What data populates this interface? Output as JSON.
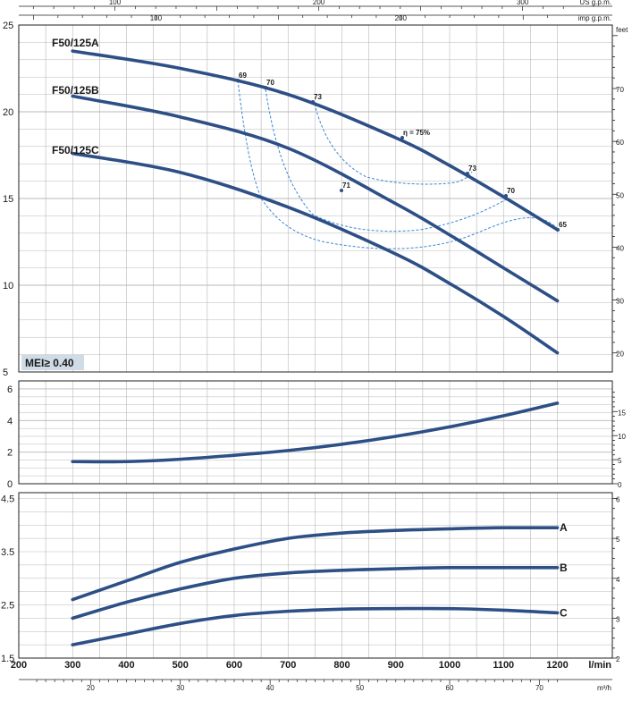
{
  "chart_data": [
    {
      "type": "line",
      "panel": "head",
      "ylim": [
        5,
        25
      ],
      "yticks": [
        "5",
        "10",
        "15",
        "20",
        "25"
      ],
      "right_axis": {
        "unit": "feet",
        "range": [
          16.4,
          82.0
        ],
        "ticks": [
          "20",
          "30",
          "40",
          "50",
          "60",
          "70"
        ]
      },
      "series": [
        {
          "name": "F50/125A",
          "x": [
            300,
            500,
            700,
            900,
            1000,
            1100,
            1200
          ],
          "values": [
            23.5,
            22.5,
            21.0,
            18.5,
            16.9,
            15.1,
            13.2
          ]
        },
        {
          "name": "F50/125B",
          "x": [
            300,
            500,
            700,
            900,
            1000,
            1100,
            1200
          ],
          "values": [
            20.9,
            19.7,
            17.9,
            14.7,
            12.9,
            11.0,
            9.1
          ]
        },
        {
          "name": "F50/125C",
          "x": [
            300,
            500,
            700,
            900,
            1000,
            1100,
            1200
          ],
          "values": [
            17.6,
            16.5,
            14.5,
            11.8,
            10.1,
            8.2,
            6.1
          ]
        }
      ],
      "efficiency_labels": [
        "69",
        "70",
        "73",
        "η = 75%",
        "73",
        "70",
        "65",
        "71"
      ],
      "mei_label": "MEI≥ 0.40"
    },
    {
      "type": "line",
      "panel": "npsh",
      "ylim": [
        0,
        6
      ],
      "yticks": [
        "0",
        "2",
        "4",
        "6"
      ],
      "right_axis": {
        "unit": "feet",
        "range": [
          0,
          19.7
        ],
        "ticks": [
          "0",
          "5",
          "10",
          "15"
        ]
      },
      "series": [
        {
          "x": [
            300,
            400,
            500,
            600,
            700,
            800,
            900,
            1000,
            1100,
            1200
          ],
          "values": [
            1.4,
            1.4,
            1.55,
            1.8,
            2.1,
            2.5,
            3.0,
            3.6,
            4.3,
            5.1
          ]
        }
      ]
    },
    {
      "type": "line",
      "panel": "power",
      "ylim": [
        1.5,
        4.5
      ],
      "yticks": [
        "1.5",
        "2.5",
        "3.5",
        "4.5"
      ],
      "right_axis": {
        "range": [
          2,
          6
        ],
        "ticks": [
          "2",
          "3",
          "4",
          "5",
          "6"
        ]
      },
      "series": [
        {
          "name": "A",
          "x": [
            300,
            400,
            500,
            600,
            700,
            800,
            900,
            1000,
            1100,
            1200
          ],
          "values": [
            2.6,
            2.95,
            3.3,
            3.55,
            3.75,
            3.85,
            3.9,
            3.93,
            3.95,
            3.95
          ]
        },
        {
          "name": "B",
          "x": [
            300,
            400,
            500,
            600,
            700,
            800,
            900,
            1000,
            1100,
            1200
          ],
          "values": [
            2.25,
            2.55,
            2.8,
            3.0,
            3.1,
            3.15,
            3.18,
            3.2,
            3.2,
            3.2
          ]
        },
        {
          "name": "C",
          "x": [
            300,
            400,
            500,
            600,
            700,
            800,
            900,
            1000,
            1100,
            1200
          ],
          "values": [
            1.75,
            1.95,
            2.15,
            2.3,
            2.38,
            2.42,
            2.43,
            2.43,
            2.4,
            2.35
          ]
        }
      ]
    }
  ],
  "axes": {
    "x_lmin": {
      "unit": "l/min",
      "range": [
        200,
        1200
      ],
      "ticks": [
        "200",
        "300",
        "400",
        "500",
        "600",
        "700",
        "800",
        "900",
        "1000",
        "1100",
        "1200"
      ]
    },
    "x_m3h": {
      "unit": "m³/h",
      "ticks": [
        "20",
        "30",
        "40",
        "50",
        "60",
        "70"
      ]
    },
    "x_usgpm": {
      "unit": "US g.p.m.",
      "ticks": [
        "100",
        "200",
        "300"
      ]
    },
    "x_impgpm": {
      "unit": "imp g.p.m.",
      "ticks": [
        "100",
        "200"
      ]
    }
  },
  "colors": {
    "curve": "#2d4f86",
    "eff": "#3a86d4",
    "grid": "#b8b8b8",
    "mei_bg": "#cfdbe6"
  }
}
